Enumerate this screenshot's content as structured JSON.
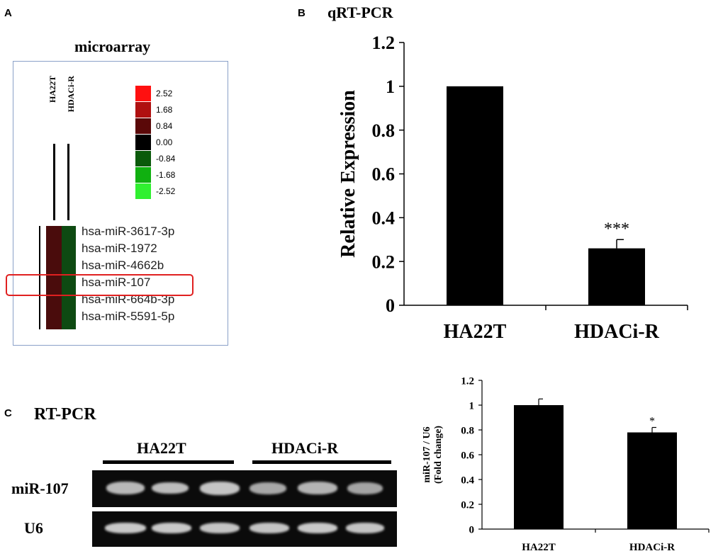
{
  "panels": {
    "a": {
      "letter": "A",
      "title": "microarray",
      "columns": [
        "HA22T",
        "HDACi-R"
      ],
      "scale": [
        {
          "value": "2.52",
          "color": "#ff1010"
        },
        {
          "value": "1.68",
          "color": "#b01010"
        },
        {
          "value": "0.84",
          "color": "#5a0808"
        },
        {
          "value": "0.00",
          "color": "#000000"
        },
        {
          "value": "-0.84",
          "color": "#0b5a0b"
        },
        {
          "value": "-1.68",
          "color": "#10b010"
        },
        {
          "value": "-2.52",
          "color": "#30f030"
        }
      ],
      "genes": [
        "hsa-miR-3617-3p",
        "hsa-miR-1972",
        "hsa-miR-4662b",
        "hsa-miR-107",
        "hsa-miR-664b-3p",
        "hsa-miR-5591-5p"
      ],
      "highlighted_gene": "hsa-miR-107",
      "highlight_color": "#e02020"
    },
    "b": {
      "letter": "B",
      "title": "qRT-PCR"
    },
    "c": {
      "letter": "C",
      "title": "RT-PCR",
      "groups": [
        "HA22T",
        "HDACi-R"
      ],
      "rows": [
        "miR-107",
        "U6"
      ]
    }
  },
  "chart_data": [
    {
      "type": "bar",
      "title": "qRT-PCR",
      "categories": [
        "HA22T",
        "HDACi-R"
      ],
      "values": [
        1.0,
        0.26
      ],
      "errors": [
        0,
        0.04
      ],
      "annotations": [
        "",
        "***"
      ],
      "xlabel": "",
      "ylabel": "Relative Expression",
      "ylim": [
        0,
        1.2
      ],
      "yticks": [
        0,
        0.2,
        0.4,
        0.6,
        0.8,
        1,
        1.2
      ],
      "ytick_labels": [
        "0",
        "0.2",
        "0.4",
        "0.6",
        "0.8",
        "1",
        "1.2"
      ],
      "grid": false,
      "bar_color": "#000000"
    },
    {
      "type": "bar",
      "title": "",
      "categories": [
        "HA22T",
        "HDACi-R"
      ],
      "values": [
        1.0,
        0.78
      ],
      "errors": [
        0.05,
        0.04
      ],
      "annotations": [
        "",
        "*"
      ],
      "xlabel": "",
      "ylabel": "miR-107 / U6",
      "ylabel2": "(Fold change)",
      "ylim": [
        0,
        1.2
      ],
      "yticks": [
        0,
        0.2,
        0.4,
        0.6,
        0.8,
        1,
        1.2
      ],
      "ytick_labels": [
        "0",
        "0.2",
        "0.4",
        "0.6",
        "0.8",
        "1",
        "1.2"
      ],
      "grid": false,
      "bar_color": "#000000"
    }
  ]
}
